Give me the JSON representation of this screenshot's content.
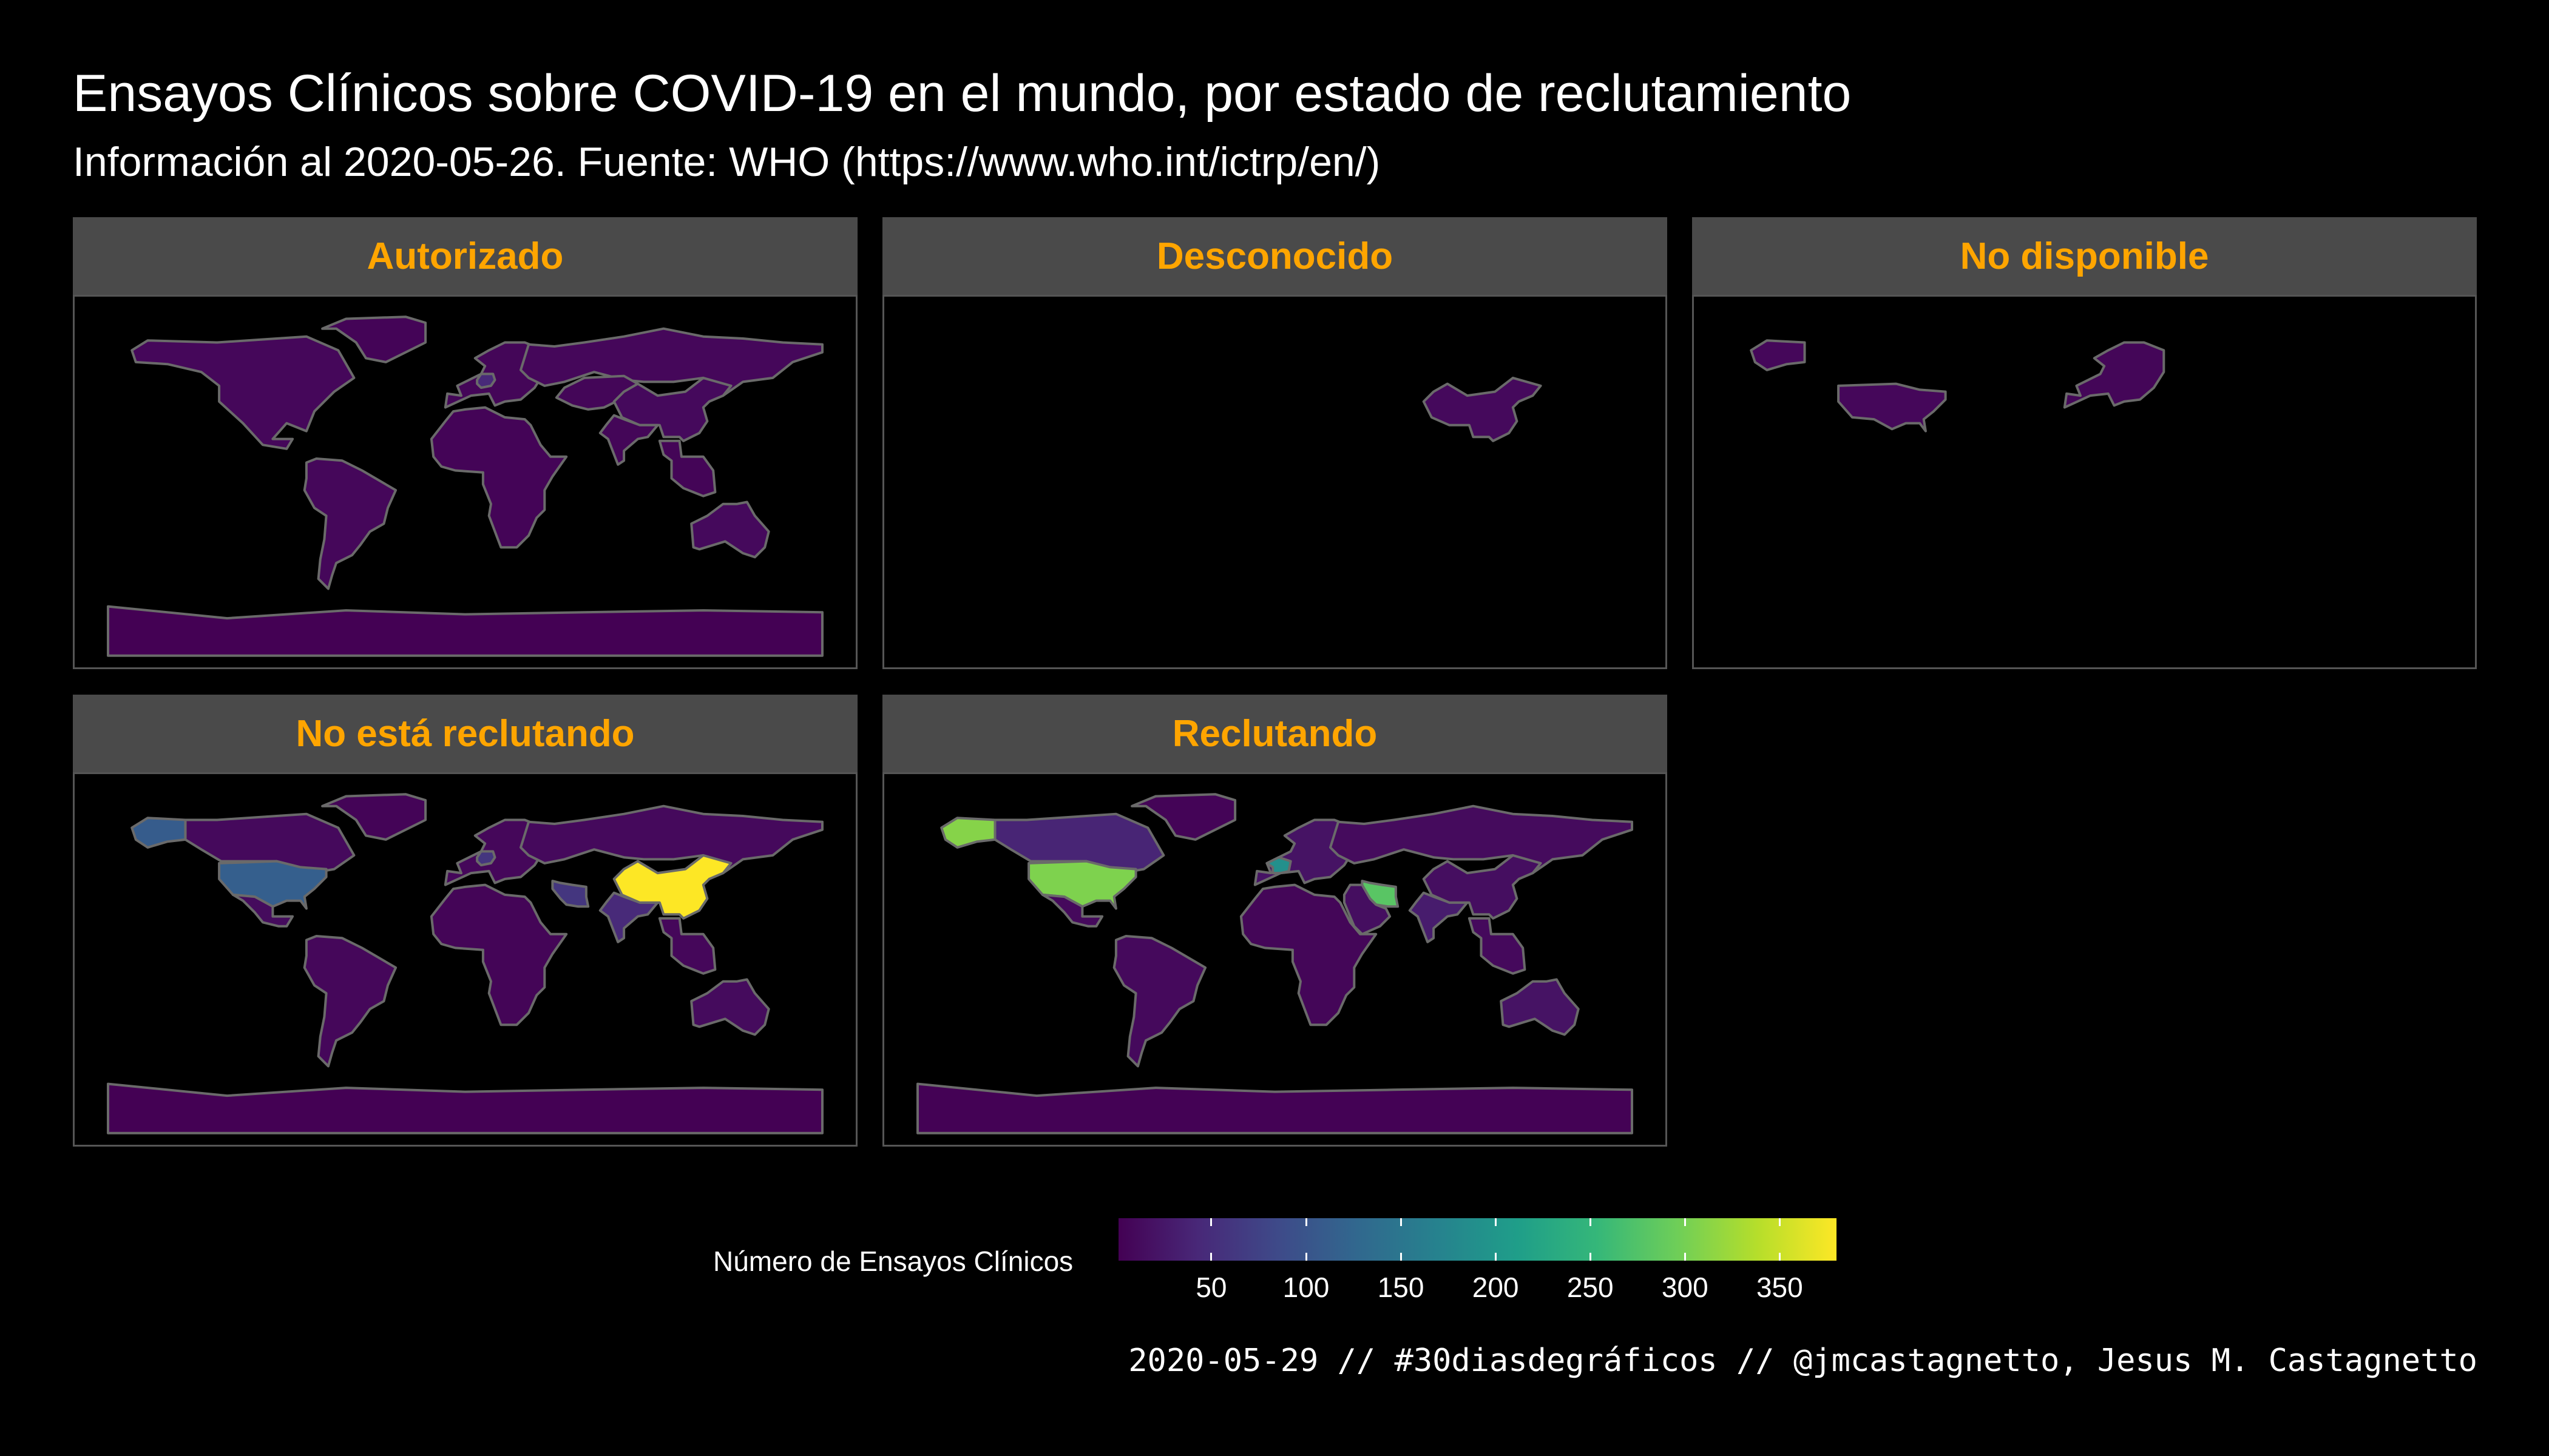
{
  "title": "Ensayos Clínicos sobre COVID-19 en el mundo, por estado de reclutamiento",
  "subtitle": "Información al 2020-05-26. Fuente: WHO (https://www.who.int/ictrp/en/)",
  "caption": "2020-05-29 // #30diasdegráficos // @jmcastagnetto, Jesus M. Castagnetto",
  "colors": {
    "background": "#000000",
    "strip_background": "#4a4a4a",
    "strip_text": "#ffa500",
    "country_border": "#6a6a6a",
    "viridis": [
      "#440154",
      "#482878",
      "#3e4a89",
      "#31688e",
      "#26828e",
      "#1f9e89",
      "#35b779",
      "#6ece58",
      "#b5de2b",
      "#fde725"
    ]
  },
  "legend": {
    "title": "Número de Ensayos Clínicos",
    "min": 1,
    "max": 380,
    "ticks": [
      "50",
      "100",
      "150",
      "200",
      "250",
      "300",
      "350"
    ]
  },
  "panels": [
    {
      "label": "Autorizado",
      "countries": [
        {
          "name": "North America",
          "value": 8
        },
        {
          "name": "Greenland",
          "value": 4
        },
        {
          "name": "South America",
          "value": 8
        },
        {
          "name": "Europe",
          "value": 6
        },
        {
          "name": "Germany",
          "value": 45
        },
        {
          "name": "Russia",
          "value": 8
        },
        {
          "name": "Central Asia",
          "value": 6
        },
        {
          "name": "China",
          "value": 10
        },
        {
          "name": "India",
          "value": 6
        },
        {
          "name": "Southeast Asia",
          "value": 5
        },
        {
          "name": "Australia",
          "value": 10
        },
        {
          "name": "Africa",
          "value": 4
        },
        {
          "name": "Antarctica",
          "value": 1
        }
      ]
    },
    {
      "label": "Desconocido",
      "countries": [
        {
          "name": "China",
          "value": 10
        }
      ]
    },
    {
      "label": "No disponible",
      "countries": [
        {
          "name": "United States",
          "value": 8
        },
        {
          "name": "Alaska",
          "value": 8
        },
        {
          "name": "Europe",
          "value": 6
        }
      ]
    },
    {
      "label": "No está reclutando",
      "countries": [
        {
          "name": "Alaska",
          "value": 110
        },
        {
          "name": "Canada",
          "value": 10
        },
        {
          "name": "United States",
          "value": 115
        },
        {
          "name": "Mexico",
          "value": 12
        },
        {
          "name": "Greenland",
          "value": 4
        },
        {
          "name": "South America",
          "value": 8
        },
        {
          "name": "Europe",
          "value": 8
        },
        {
          "name": "Germany",
          "value": 60
        },
        {
          "name": "Russia",
          "value": 10
        },
        {
          "name": "Iran",
          "value": 60
        },
        {
          "name": "India",
          "value": 45
        },
        {
          "name": "China",
          "value": 380
        },
        {
          "name": "Southeast Asia",
          "value": 8
        },
        {
          "name": "Australia",
          "value": 12
        },
        {
          "name": "Africa",
          "value": 5
        },
        {
          "name": "Antarctica",
          "value": 1
        }
      ]
    },
    {
      "label": "Reclutando",
      "countries": [
        {
          "name": "Alaska",
          "value": 310
        },
        {
          "name": "Canada",
          "value": 40
        },
        {
          "name": "United States",
          "value": 305
        },
        {
          "name": "Mexico",
          "value": 10
        },
        {
          "name": "Greenland",
          "value": 4
        },
        {
          "name": "South America",
          "value": 10
        },
        {
          "name": "Europe",
          "value": 20
        },
        {
          "name": "France",
          "value": 190
        },
        {
          "name": "Russia",
          "value": 12
        },
        {
          "name": "Iran",
          "value": 280
        },
        {
          "name": "Middle East",
          "value": 15
        },
        {
          "name": "Africa",
          "value": 6
        },
        {
          "name": "India",
          "value": 30
        },
        {
          "name": "China",
          "value": 15
        },
        {
          "name": "Southeast Asia",
          "value": 10
        },
        {
          "name": "Australia",
          "value": 20
        },
        {
          "name": "Antarctica",
          "value": 2
        }
      ]
    }
  ]
}
